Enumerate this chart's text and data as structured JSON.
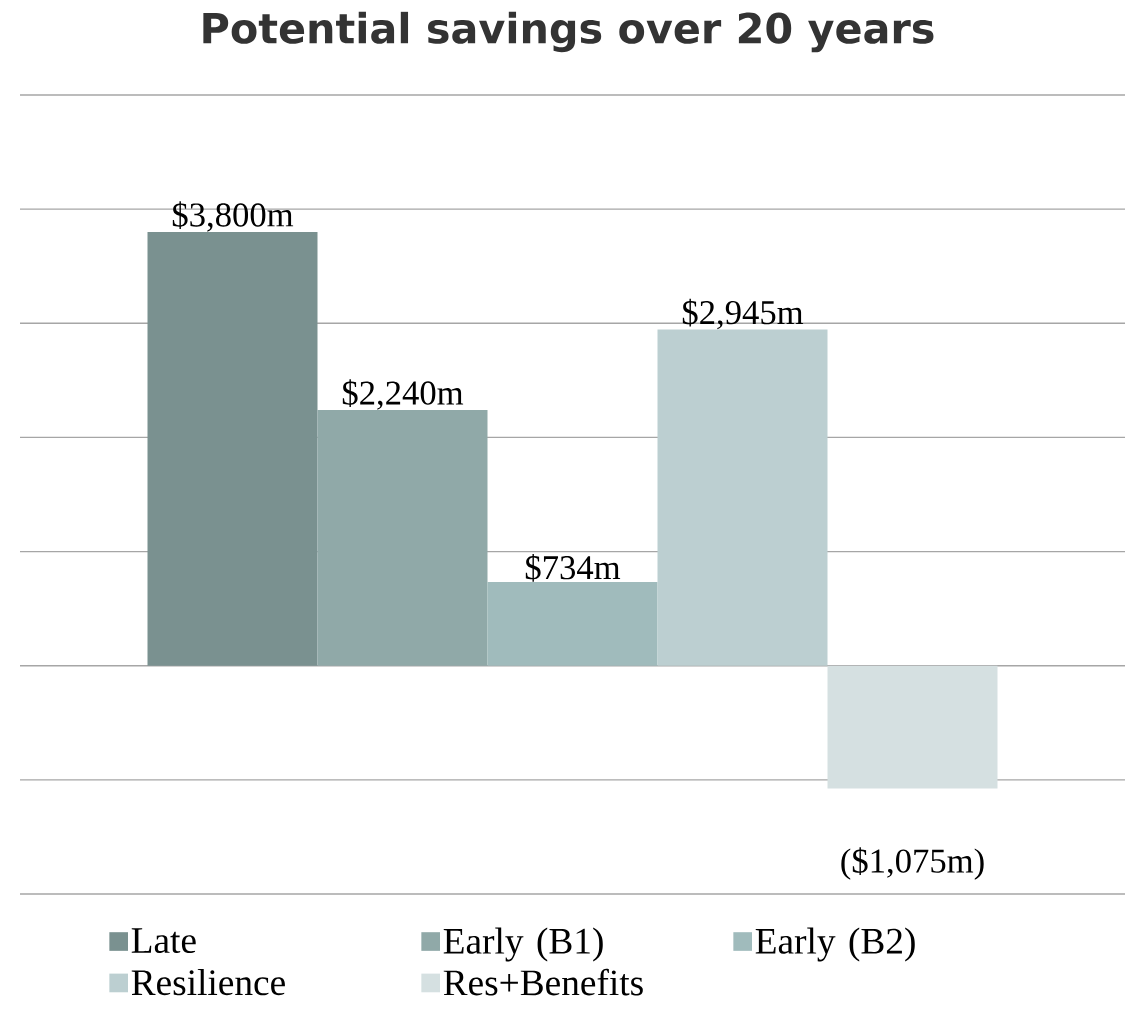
{
  "chart_data": {
    "type": "bar",
    "title": "Potential savings over 20 years",
    "categories": [
      null
    ],
    "series": [
      {
        "name": "Late",
        "color": "#7a9190",
        "values": [
          3800
        ],
        "value_labels": [
          "$3,800m"
        ]
      },
      {
        "name": "Early (B1)",
        "color": "#90a9a8",
        "values": [
          2240
        ],
        "value_labels": [
          "$2,240m"
        ]
      },
      {
        "name": "Early (B2)",
        "color": "#a0bbbc",
        "values": [
          734
        ],
        "value_labels": [
          "$734m"
        ]
      },
      {
        "name": "Resilience",
        "color": "#bccfd1",
        "values": [
          2945
        ],
        "value_labels": [
          "$2,945m"
        ]
      },
      {
        "name": "Res+Benefits",
        "color": "#d5e0e1",
        "values": [
          -1075
        ],
        "value_labels": [
          "($1,075m)"
        ]
      }
    ],
    "ylim": [
      -2000,
      5000
    ],
    "yticks": [
      {
        "value": -2000,
        "label": null
      },
      {
        "value": -1000,
        "label": null
      },
      {
        "value": 0,
        "label": null
      },
      {
        "value": 1000,
        "label": null
      },
      {
        "value": 2000,
        "label": null
      },
      {
        "value": 3000,
        "label": null
      },
      {
        "value": 4000,
        "label": null
      },
      {
        "value": 5000,
        "label": null
      }
    ],
    "grid": "y",
    "legend": "bottom"
  }
}
